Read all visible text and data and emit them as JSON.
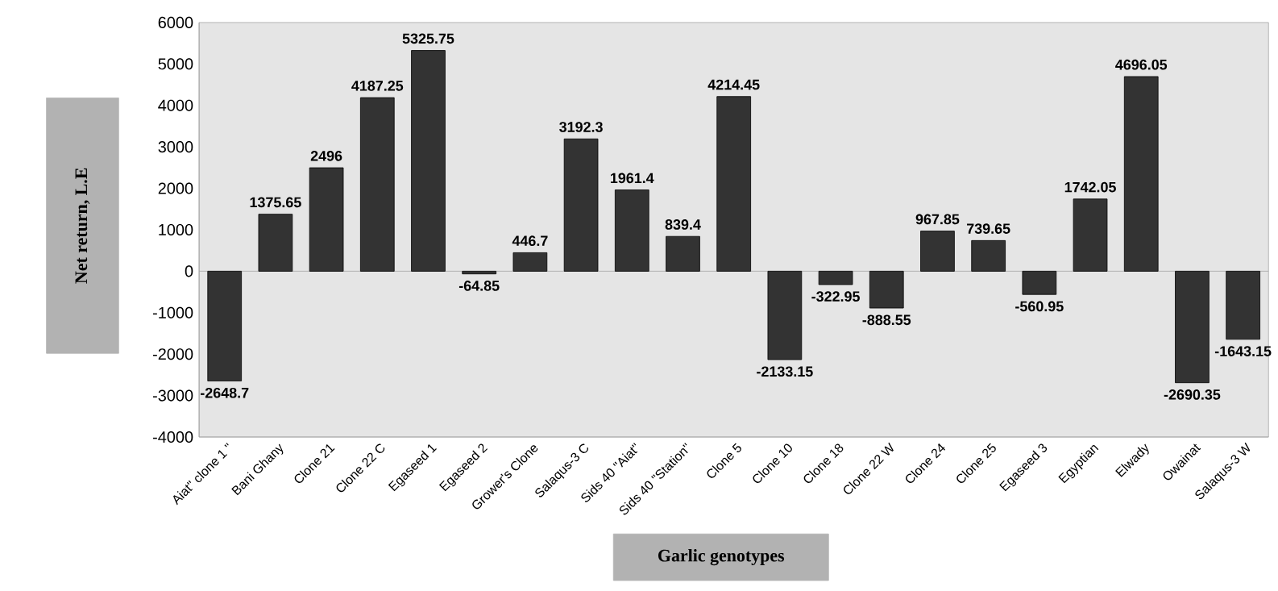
{
  "chart_data": {
    "type": "bar",
    "xlabel": "Garlic genotypes",
    "ylabel": "Net return, L.E",
    "categories": [
      "Aiat\" clone 1 \"",
      "Bani Ghany",
      "Clone 21",
      "Clone 22 C",
      "Egaseed 1",
      "Egaseed 2",
      "Grower's Clone",
      "Salaqus-3 C",
      "Sids 40 \"Aiat\"",
      "Sids 40 \"Station\"",
      "Clone 5",
      "Clone 10",
      "Clone 18",
      "Clone 22 W",
      "Clone 24",
      "Clone 25",
      "Egaseed 3",
      "Egyptian",
      "Elwady",
      "Owainat",
      "Salaqus-3 W"
    ],
    "values": [
      -2648.7,
      1375.65,
      2496,
      4187.25,
      5325.75,
      -64.85,
      446.7,
      3192.3,
      1961.4,
      839.4,
      4214.45,
      -2133.15,
      -322.95,
      -888.55,
      967.85,
      739.65,
      -560.95,
      1742.05,
      4696.05,
      -2690.35,
      -1643.15
    ],
    "color": "#333333",
    "data_labels": true,
    "ylim": [
      -4000,
      6000
    ],
    "yticks": [
      -4000,
      -3000,
      -2000,
      -1000,
      0,
      1000,
      2000,
      3000,
      4000,
      5000,
      6000
    ]
  }
}
